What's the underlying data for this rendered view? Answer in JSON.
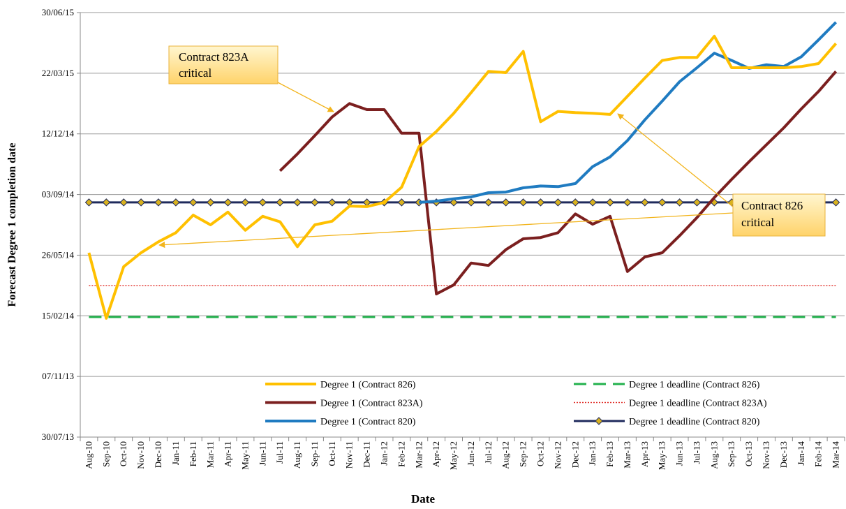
{
  "chart_data": {
    "type": "line",
    "xlabel": "Date",
    "ylabel": "Forecast Degree 1 completion date",
    "categories": [
      "Aug-10",
      "Sep-10",
      "Oct-10",
      "Nov-10",
      "Dec-10",
      "Jan-11",
      "Feb-11",
      "Mar-11",
      "Apr-11",
      "May-11",
      "Jun-11",
      "Jul-11",
      "Aug-11",
      "Sep-11",
      "Oct-11",
      "Nov-11",
      "Dec-11",
      "Jan-12",
      "Feb-12",
      "Mar-12",
      "Apr-12",
      "May-12",
      "Jun-12",
      "Jul-12",
      "Aug-12",
      "Sep-12",
      "Oct-12",
      "Nov-12",
      "Dec-12",
      "Jan-13",
      "Feb-13",
      "Mar-13",
      "Apr-13",
      "May-13",
      "Jun-13",
      "Jul-13",
      "Aug-13",
      "Sep-13",
      "Oct-13",
      "Nov-13",
      "Dec-13",
      "Jan-14",
      "Feb-14",
      "Mar-14"
    ],
    "ylim": [
      41485,
      42185
    ],
    "yticks": [
      {
        "value": 41485,
        "label": "30/07/13"
      },
      {
        "value": 41585,
        "label": "07/11/13"
      },
      {
        "value": 41685,
        "label": "15/02/14"
      },
      {
        "value": 41785,
        "label": "26/05/14"
      },
      {
        "value": 41885,
        "label": "03/09/14"
      },
      {
        "value": 41985,
        "label": "12/12/14"
      },
      {
        "value": 42085,
        "label": "22/03/15"
      },
      {
        "value": 42185,
        "label": "30/06/15"
      }
    ],
    "grid": true,
    "series": [
      {
        "name": "Degree 1 (Contract 826)",
        "color": "#FFC000",
        "style": "solid",
        "values": [
          41789,
          41681,
          41766,
          41789,
          41807,
          41822,
          41851,
          41835,
          41856,
          41826,
          41849,
          41840,
          41799,
          41835,
          41841,
          41866,
          41865,
          41872,
          41897,
          41964,
          41989,
          42019,
          42053,
          42088,
          42086,
          42121,
          42005,
          42022,
          42020,
          42019,
          42017,
          42047,
          42077,
          42106,
          42111,
          42111,
          42146,
          42094,
          42094,
          42094,
          42094,
          42096,
          42101,
          42134
        ]
      },
      {
        "name": "Degree 1 (Contract 823A)",
        "color": "#7B1F1F",
        "style": "solid",
        "values": [
          null,
          null,
          null,
          null,
          null,
          null,
          null,
          null,
          null,
          null,
          null,
          41924,
          41952,
          41982,
          42013,
          42035,
          42025,
          42025,
          41986,
          41986,
          41721,
          41736,
          41772,
          41768,
          41794,
          41812,
          41814,
          41822,
          41853,
          41836,
          41849,
          41758,
          41782,
          41789,
          41817,
          41847,
          41880,
          41910,
          41939,
          41967,
          41995,
          42026,
          42055,
          42088
        ]
      },
      {
        "name": "Degree 1 (Contract 820)",
        "color": "#1F7BC1",
        "style": "solid",
        "values": [
          null,
          null,
          null,
          null,
          null,
          null,
          null,
          null,
          null,
          null,
          null,
          null,
          null,
          null,
          null,
          null,
          null,
          null,
          null,
          41872,
          41874,
          41878,
          41881,
          41888,
          41889,
          41896,
          41899,
          41898,
          41903,
          41931,
          41947,
          41974,
          42008,
          42039,
          42071,
          42094,
          42118,
          42106,
          42093,
          42099,
          42096,
          42112,
          42140,
          42169
        ]
      },
      {
        "name": "Degree 1 deadline (Contract 826)",
        "color": "#22B14C",
        "style": "dashed",
        "values": [
          41683,
          41683,
          41683,
          41683,
          41683,
          41683,
          41683,
          41683,
          41683,
          41683,
          41683,
          41683,
          41683,
          41683,
          41683,
          41683,
          41683,
          41683,
          41683,
          41683,
          41683,
          41683,
          41683,
          41683,
          41683,
          41683,
          41683,
          41683,
          41683,
          41683,
          41683,
          41683,
          41683,
          41683,
          41683,
          41683,
          41683,
          41683,
          41683,
          41683,
          41683,
          41683,
          41683,
          41683
        ]
      },
      {
        "name": "Degree 1 deadline (Contract 823A)",
        "color": "#E0302A",
        "style": "dotted",
        "values": [
          41735,
          41735,
          41735,
          41735,
          41735,
          41735,
          41735,
          41735,
          41735,
          41735,
          41735,
          41735,
          41735,
          41735,
          41735,
          41735,
          41735,
          41735,
          41735,
          41735,
          41735,
          41735,
          41735,
          41735,
          41735,
          41735,
          41735,
          41735,
          41735,
          41735,
          41735,
          41735,
          41735,
          41735,
          41735,
          41735,
          41735,
          41735,
          41735,
          41735,
          41735,
          41735,
          41735,
          41735
        ]
      },
      {
        "name": "Degree 1 deadline (Contract 820)",
        "color": "#1F2A5C",
        "style": "solid",
        "marker": "diamond",
        "marker_color": "#D9B21E",
        "values": [
          41872,
          41872,
          41872,
          41872,
          41872,
          41872,
          41872,
          41872,
          41872,
          41872,
          41872,
          41872,
          41872,
          41872,
          41872,
          41872,
          41872,
          41872,
          41872,
          41872,
          41872,
          41872,
          41872,
          41872,
          41872,
          41872,
          41872,
          41872,
          41872,
          41872,
          41872,
          41872,
          41872,
          41872,
          41872,
          41872,
          41872,
          41872,
          41872,
          41872,
          41872,
          41872,
          41872,
          41872
        ]
      }
    ],
    "annotations": [
      {
        "text": [
          "Contract 823A",
          "critical"
        ]
      },
      {
        "text": [
          "Contract 826",
          "critical"
        ]
      }
    ]
  }
}
